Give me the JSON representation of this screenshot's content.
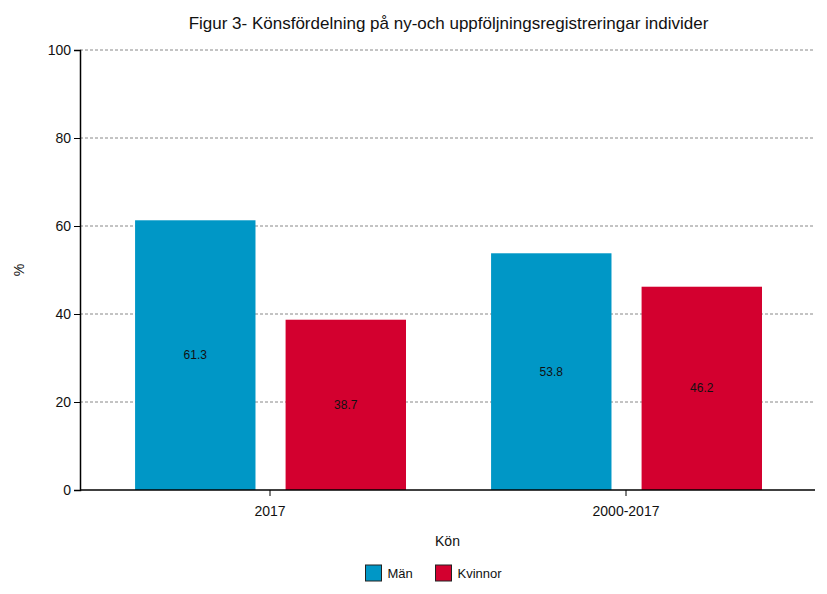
{
  "chart_data": {
    "type": "bar",
    "title": "Figur 3- Könsfördelning på ny-och uppföljningsregistreringar individer",
    "x_label": "Kön",
    "y_label": "%",
    "categories": [
      "2017",
      "2000-2017"
    ],
    "series": [
      {
        "name": "Män",
        "color": "#0097c6",
        "values": [
          61.3,
          53.8
        ]
      },
      {
        "name": "Kvinnor",
        "color": "#d3002f",
        "values": [
          38.7,
          46.2
        ]
      }
    ],
    "ylim": [
      0,
      100
    ],
    "yticks": [
      0,
      20,
      40,
      60,
      80,
      100
    ],
    "grid": true,
    "data_labels": true,
    "legend": "bottom"
  }
}
